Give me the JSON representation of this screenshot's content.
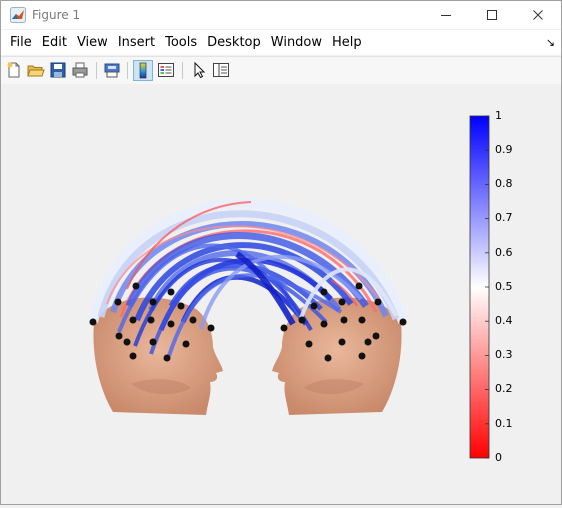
{
  "window": {
    "title": "Figure 1"
  },
  "menu": [
    "File",
    "Edit",
    "View",
    "Insert",
    "Tools",
    "Desktop",
    "Window",
    "Help"
  ],
  "toolbar": [
    "new-figure-icon",
    "open-file-icon",
    "save-icon",
    "print-icon",
    "print-preview-icon",
    "colorbar-icon",
    "legend-icon",
    "pointer-icon",
    "property-inspector-icon"
  ],
  "colorbar": {
    "ticks": [
      "1",
      "0.9",
      "0.8",
      "0.7",
      "0.6",
      "0.5",
      "0.4",
      "0.3",
      "0.2",
      "0.1",
      "0"
    ],
    "colors": {
      "low": "#ff0000",
      "mid": "#ffffff",
      "high": "#0000ff"
    }
  }
}
